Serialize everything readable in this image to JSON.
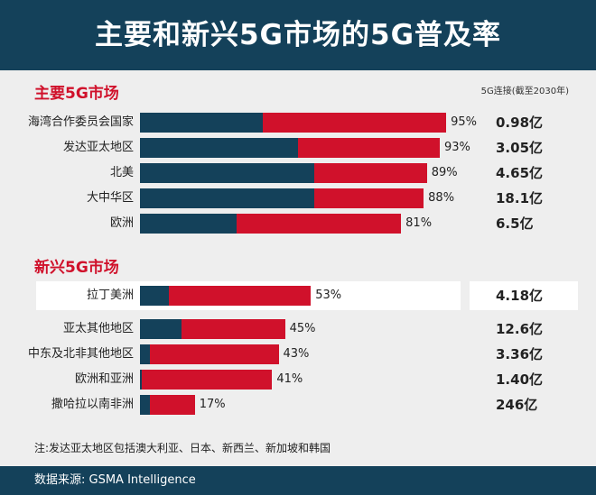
{
  "title": "主要和新兴5G市场的5G普及率",
  "conn_header": "5G连接(截至2030年)",
  "note": "注:发达亚太地区包括澳大利亚、日本、新西兰、新加坡和韩国",
  "source": "数据来源: GSMA Intelligence",
  "colors": {
    "navy": "#14415a",
    "red": "#d0112b"
  },
  "chart_data": {
    "type": "bar",
    "orientation": "horizontal",
    "title": "主要和新兴5G市场的5G普及率",
    "value_unit": "%",
    "groups": [
      {
        "name": "主要5G市场",
        "rows": [
          {
            "label": "海湾合作委员会国家",
            "value": 95,
            "value_label": "95%",
            "blue": 38,
            "connections": "0.98亿"
          },
          {
            "label": "发达亚太地区",
            "value": 93,
            "value_label": "93%",
            "blue": 49,
            "connections": "3.05亿"
          },
          {
            "label": "北美",
            "value": 89,
            "value_label": "89%",
            "blue": 54,
            "connections": "4.65亿"
          },
          {
            "label": "大中华区",
            "value": 88,
            "value_label": "88%",
            "blue": 54,
            "connections": "18.1亿"
          },
          {
            "label": "欧洲",
            "value": 81,
            "value_label": "81%",
            "blue": 30,
            "connections": "6.5亿"
          }
        ]
      },
      {
        "name": "新兴5G市场",
        "rows": [
          {
            "label": "拉丁美洲",
            "value": 53,
            "value_label": "53%",
            "blue": 9,
            "connections": "4.18亿",
            "highlight": true
          },
          {
            "label": "亚太其他地区",
            "value": 45,
            "value_label": "45%",
            "blue": 13,
            "connections": "12.6亿"
          },
          {
            "label": "中东及北非其他地区",
            "value": 43,
            "value_label": "43%",
            "blue": 3,
            "connections": "3.36亿"
          },
          {
            "label": "欧洲和亚洲",
            "value": 41,
            "value_label": "41%",
            "blue": 0.5,
            "connections": "1.40亿"
          },
          {
            "label": "撒哈拉以南非洲",
            "value": 17,
            "value_label": "17%",
            "blue": 3,
            "connections": "246亿"
          }
        ]
      }
    ]
  }
}
